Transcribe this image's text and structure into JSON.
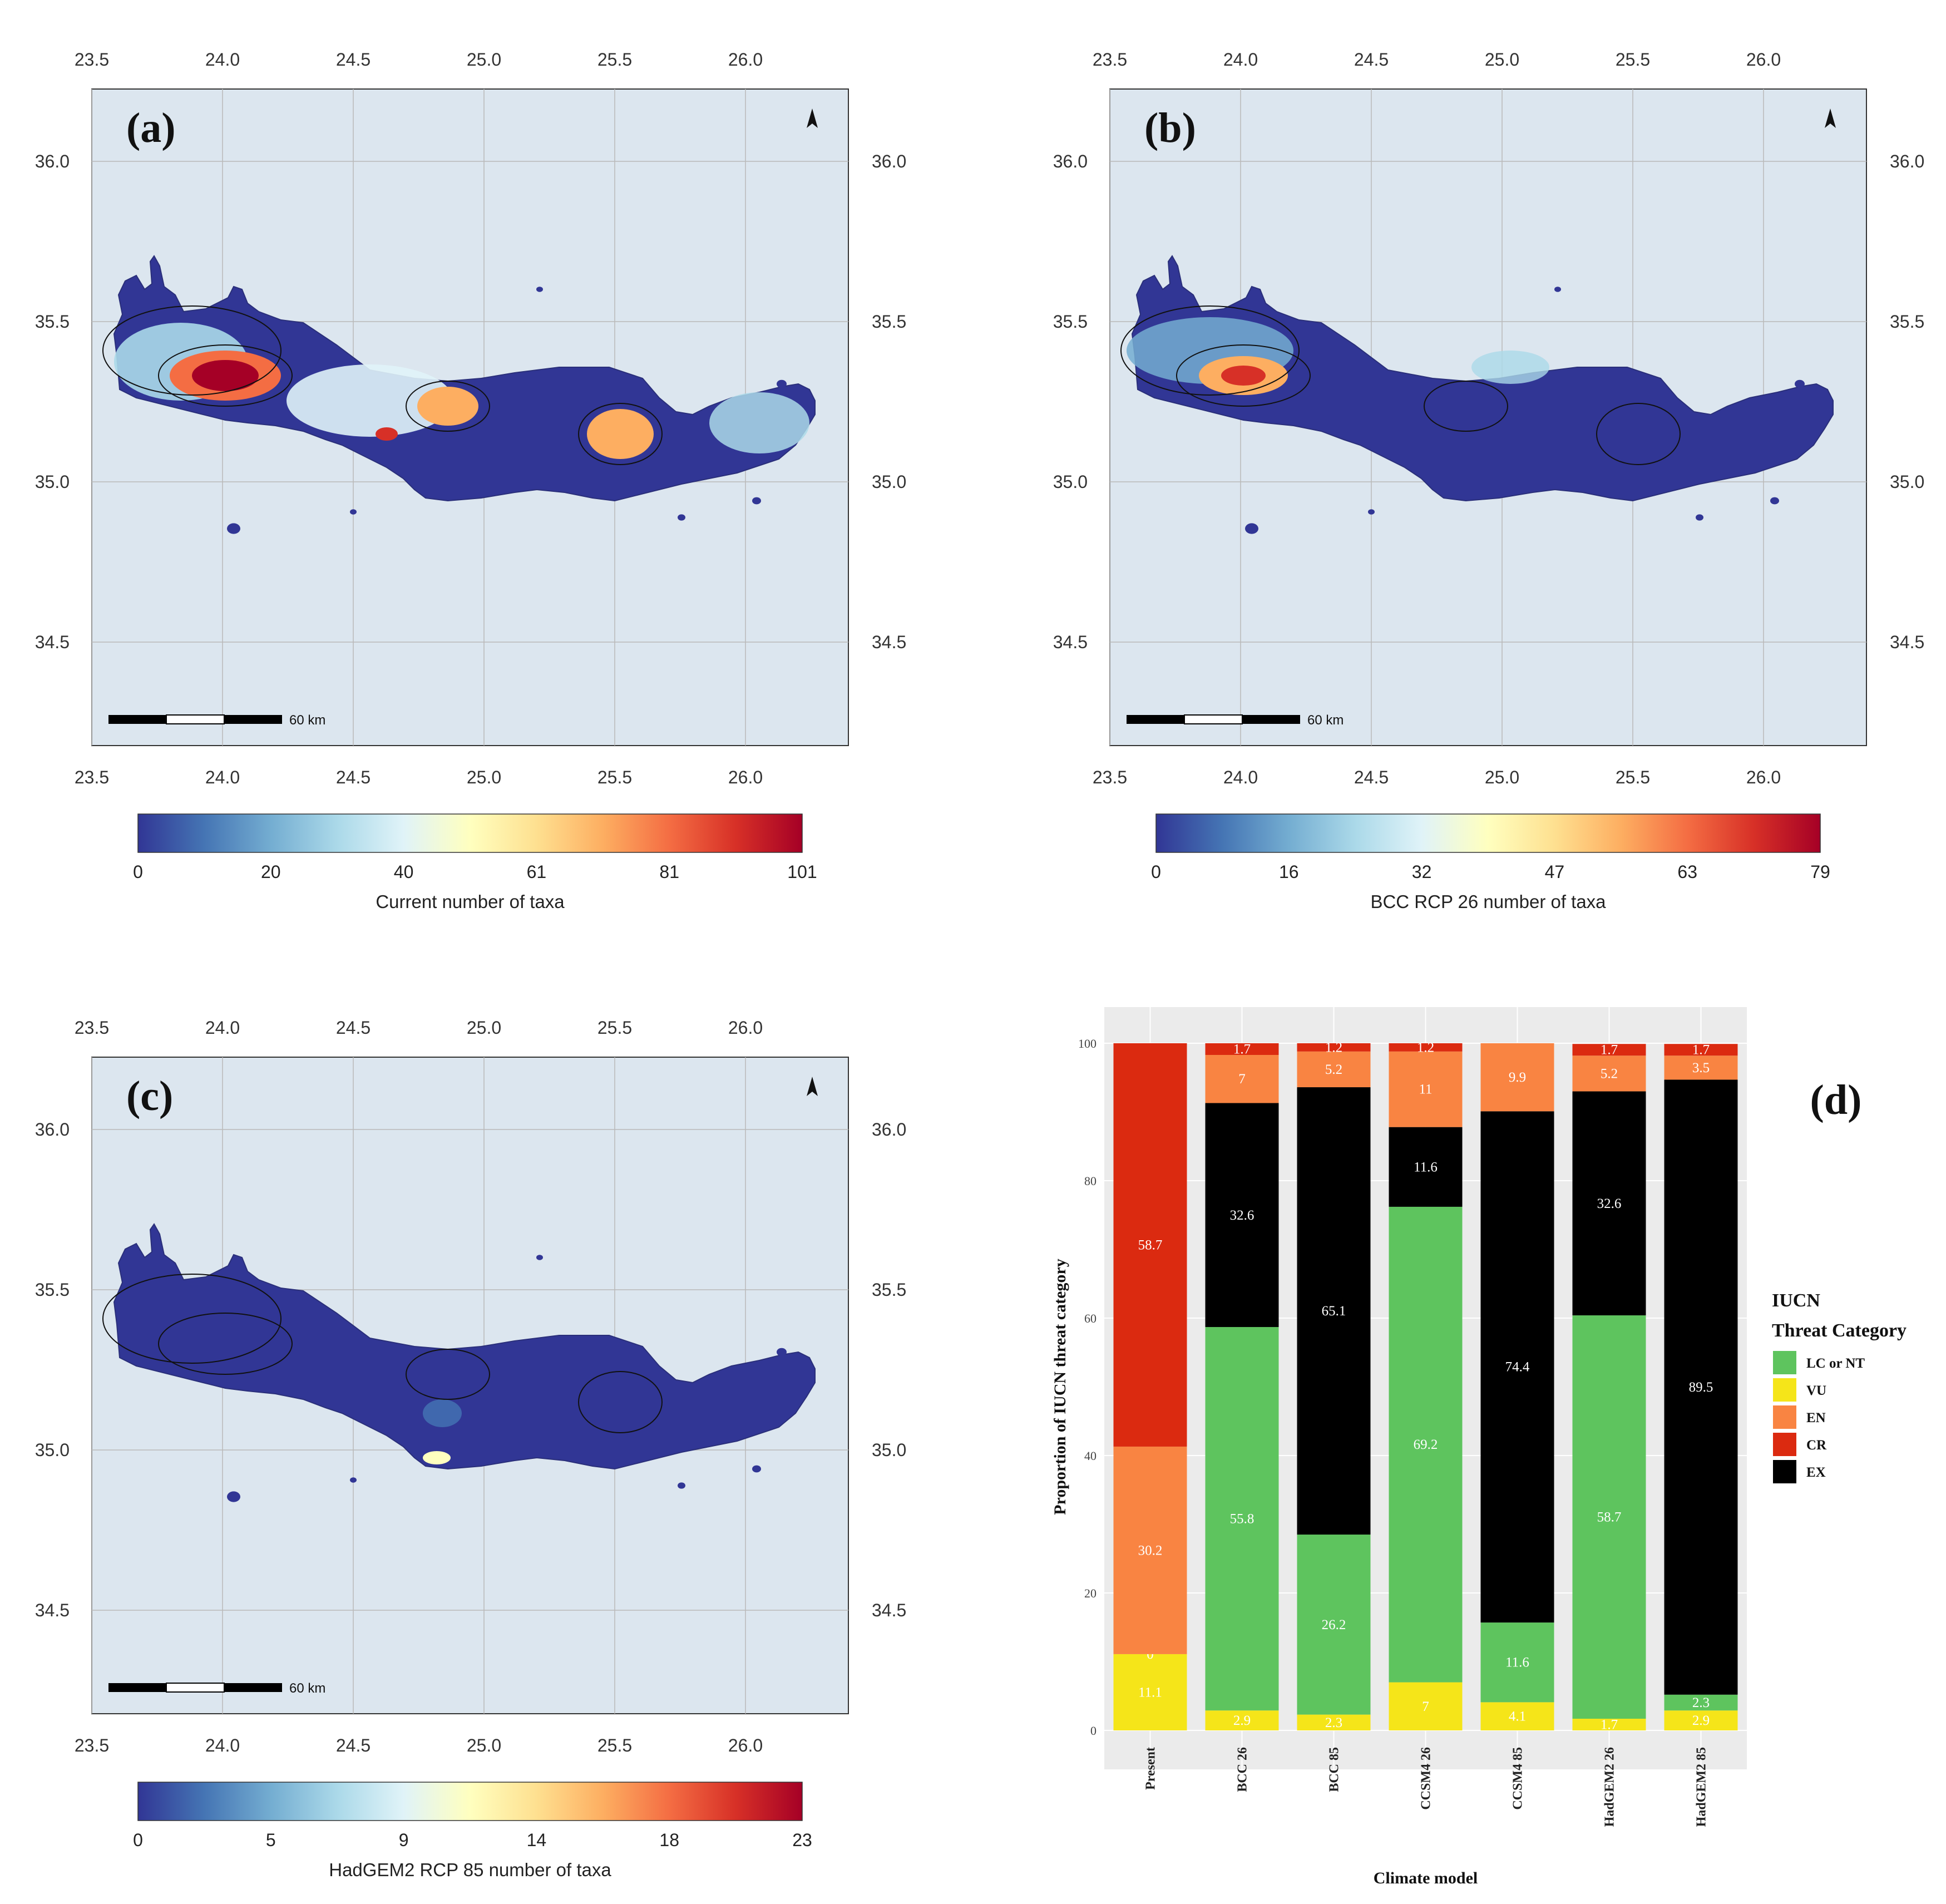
{
  "maps": [
    {
      "id": "a",
      "panel_label": "(a)",
      "lon_ticks": [
        "23.5",
        "24.0",
        "24.5",
        "25.0",
        "25.5",
        "26.0"
      ],
      "lat_ticks": [
        "36.0",
        "35.5",
        "35.0",
        "34.5"
      ],
      "scalebar_label": "60 km",
      "colorbar_ticks": [
        "0",
        "20",
        "40",
        "61",
        "81",
        "101"
      ],
      "colorbar_title": "Current number of taxa",
      "richness_level": "high"
    },
    {
      "id": "b",
      "panel_label": "(b)",
      "lon_ticks": [
        "23.5",
        "24.0",
        "24.5",
        "25.0",
        "25.5",
        "26.0"
      ],
      "lat_ticks": [
        "36.0",
        "35.5",
        "35.0",
        "34.5"
      ],
      "scalebar_label": "60 km",
      "colorbar_ticks": [
        "0",
        "16",
        "32",
        "47",
        "63",
        "79"
      ],
      "colorbar_title": "BCC RCP 26 number of taxa",
      "richness_level": "medium"
    },
    {
      "id": "c",
      "panel_label": "(c)",
      "lon_ticks": [
        "23.5",
        "24.0",
        "24.5",
        "25.0",
        "25.5",
        "26.0"
      ],
      "lat_ticks": [
        "36.0",
        "35.5",
        "35.0",
        "34.5"
      ],
      "scalebar_label": "60 km",
      "colorbar_ticks": [
        "0",
        "5",
        "9",
        "14",
        "18",
        "23"
      ],
      "colorbar_title": "HadGEM2 RCP 85 number of taxa",
      "richness_level": "low"
    }
  ],
  "chart_data": {
    "type": "bar",
    "panel_label": "(d)",
    "stacked": true,
    "xlabel": "Climate model",
    "ylabel": "Proportion of IUCN threat category",
    "ylim": [
      0,
      100
    ],
    "yticks": [
      "0",
      "20",
      "40",
      "60",
      "80",
      "100"
    ],
    "categories": [
      "Present",
      "BCC 26",
      "BCC 85",
      "CCSM4 26",
      "CCSM4 85",
      "HadGEM2 26",
      "HadGEM2 85"
    ],
    "legend_title_line1": "IUCN",
    "legend_title_line2": "Threat Category",
    "series": [
      {
        "name": "VU",
        "color": "#f5e519",
        "text_color": "#ffffff",
        "values": [
          11.1,
          2.9,
          2.3,
          7,
          4.1,
          1.7,
          2.9
        ]
      },
      {
        "name": "LC or NT",
        "color": "#5ec45e",
        "text_color": "#ffffff",
        "values": [
          0,
          55.8,
          26.2,
          69.2,
          11.6,
          58.7,
          2.3
        ]
      },
      {
        "name": "EX",
        "color": "#000000",
        "text_color": "#ffffff",
        "values": [
          0,
          32.6,
          65.1,
          11.6,
          74.4,
          32.6,
          89.5
        ]
      },
      {
        "name": "EN",
        "color": "#f98442",
        "text_color": "#ffffff",
        "values": [
          30.2,
          7,
          5.2,
          11,
          9.9,
          5.2,
          3.5
        ]
      },
      {
        "name": "CR",
        "color": "#db2a10",
        "text_color": "#ffffff",
        "values": [
          58.7,
          1.7,
          1.2,
          1.2,
          0,
          1.7,
          1.7
        ]
      }
    ],
    "labels": [
      [
        "11.1",
        "0",
        "",
        "30.2",
        "58.7"
      ],
      [
        "2.9",
        "55.8",
        "32.6",
        "7",
        "1.7"
      ],
      [
        "2.3",
        "26.2",
        "65.1",
        "5.2",
        "1.2"
      ],
      [
        "7",
        "69.2",
        "11.6",
        "11",
        "1.2"
      ],
      [
        "4.1",
        "11.6",
        "74.4",
        "9.9",
        ""
      ],
      [
        "1.7",
        "58.7",
        "32.6",
        "5.2",
        "1.7"
      ],
      [
        "2.9",
        "2.3",
        "89.5",
        "3.5",
        "1.7"
      ]
    ],
    "legend_order": [
      "LC or NT",
      "VU",
      "EN",
      "CR",
      "EX"
    ]
  },
  "colors": {
    "map_background": "#dce6ef",
    "panel_background": "#ebebeb",
    "gridline": "#b9b9b9",
    "colorbar_stops": [
      "#313695",
      "#4575b4",
      "#74add1",
      "#abd9e9",
      "#e0f3f8",
      "#ffffbf",
      "#fee090",
      "#fdae61",
      "#f46d43",
      "#d73027",
      "#a50026"
    ]
  }
}
